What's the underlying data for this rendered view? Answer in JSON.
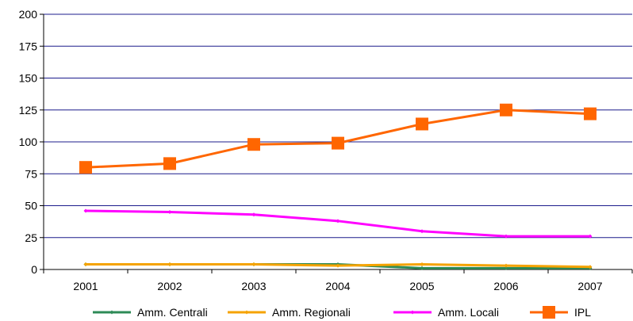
{
  "chart_data": {
    "type": "line",
    "title": "",
    "xlabel": "",
    "ylabel": "",
    "categories": [
      "2001",
      "2002",
      "2003",
      "2004",
      "2005",
      "2006",
      "2007"
    ],
    "ylim": [
      0,
      200
    ],
    "yticks": [
      0,
      25,
      50,
      75,
      100,
      125,
      150,
      175,
      200
    ],
    "grid": true,
    "legend_position": "bottom",
    "series": [
      {
        "name": "Amm. Centrali",
        "color": "#2e8b57",
        "marker": "small-diamond",
        "values": [
          4,
          4,
          4,
          4,
          1,
          1,
          1
        ]
      },
      {
        "name": "Amm. Regionali",
        "color": "#f5a300",
        "marker": "small-diamond",
        "values": [
          4,
          4,
          4,
          3,
          4,
          3,
          2
        ]
      },
      {
        "name": "Amm. Locali",
        "color": "#ff00ff",
        "marker": "small-diamond",
        "values": [
          46,
          45,
          43,
          38,
          30,
          26,
          26
        ]
      },
      {
        "name": "IPL",
        "color": "#ff6600",
        "marker": "square",
        "values": [
          80,
          83,
          98,
          99,
          114,
          125,
          122
        ]
      }
    ]
  }
}
